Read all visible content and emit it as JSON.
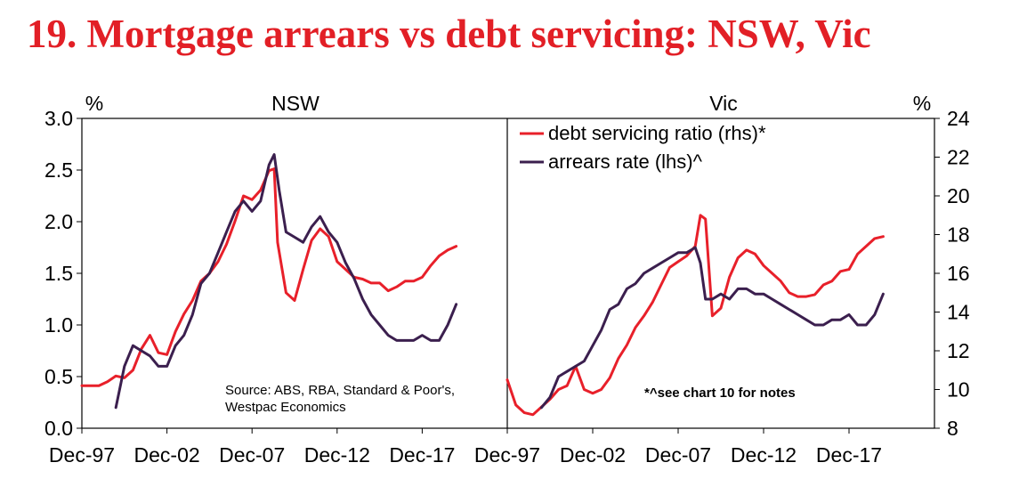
{
  "title": "19. Mortgage arrears vs debt servicing:  NSW, Vic",
  "colors": {
    "title": "#e21f26",
    "debt_servicing": "#e8202a",
    "arrears": "#3b1f4e",
    "axes": "#000000"
  },
  "chart_data": {
    "type": "line",
    "axes": {
      "left": {
        "unit_label": "%",
        "ylim": [
          0,
          3.0
        ],
        "ticks": [
          "0.0",
          "0.5",
          "1.0",
          "1.5",
          "2.0",
          "2.5",
          "3.0"
        ]
      },
      "right": {
        "unit_label": "%",
        "ylim": [
          8,
          24
        ],
        "ticks": [
          "8",
          "10",
          "12",
          "14",
          "16",
          "18",
          "20",
          "22",
          "24"
        ]
      },
      "x_ticks": [
        "Dec-97",
        "Dec-02",
        "Dec-07",
        "Dec-12",
        "Dec-17",
        "Dec-97",
        "Dec-02",
        "Dec-07",
        "Dec-12",
        "Dec-17"
      ]
    },
    "legend": {
      "placement": "top-right",
      "entries": [
        {
          "label": "debt servicing ratio (rhs)*",
          "series": "debt_servicing"
        },
        {
          "label": "arrears rate (lhs)^",
          "series": "arrears"
        }
      ]
    },
    "panels": [
      {
        "name": "NSW",
        "source": [
          "Source: ABS, RBA, Standard & Poor's,",
          "Westpac Economics"
        ],
        "series": [
          {
            "key": "debt_servicing",
            "axis": "right",
            "x": [
              1997.0,
              1998.0,
              1998.5,
              1999.0,
              1999.5,
              2000.0,
              2000.5,
              2001.0,
              2001.5,
              2002.0,
              2002.5,
              2003.0,
              2003.5,
              2004.0,
              2004.5,
              2005.0,
              2005.5,
              2006.0,
              2006.5,
              2007.0,
              2007.5,
              2008.0,
              2008.3,
              2008.5,
              2009.0,
              2009.5,
              2010.0,
              2010.5,
              2011.0,
              2011.5,
              2012.0,
              2012.5,
              2013.0,
              2013.5,
              2014.0,
              2014.5,
              2015.0,
              2015.5,
              2016.0,
              2016.5,
              2017.0,
              2017.5,
              2018.0,
              2018.5,
              2019.0
            ],
            "values": [
              10.2,
              10.2,
              10.4,
              10.7,
              10.6,
              11.0,
              12.1,
              12.8,
              11.9,
              11.8,
              13.0,
              13.9,
              14.6,
              15.6,
              16.0,
              16.6,
              17.5,
              18.7,
              20.0,
              19.8,
              20.3,
              21.3,
              21.4,
              17.6,
              15.0,
              14.6,
              16.2,
              17.7,
              18.3,
              17.9,
              16.6,
              16.2,
              15.8,
              15.7,
              15.5,
              15.5,
              15.1,
              15.3,
              15.6,
              15.6,
              15.8,
              16.4,
              16.9,
              17.2,
              17.4
            ]
          },
          {
            "key": "arrears",
            "axis": "left",
            "x": [
              1999.0,
              1999.5,
              2000.0,
              2000.5,
              2001.0,
              2001.5,
              2002.0,
              2002.5,
              2003.0,
              2003.5,
              2004.0,
              2004.5,
              2005.0,
              2005.5,
              2006.0,
              2006.5,
              2007.0,
              2007.5,
              2008.0,
              2008.3,
              2008.6,
              2009.0,
              2009.5,
              2010.0,
              2010.5,
              2011.0,
              2011.5,
              2012.0,
              2012.5,
              2013.0,
              2013.5,
              2014.0,
              2014.5,
              2015.0,
              2015.5,
              2016.0,
              2016.5,
              2017.0,
              2017.5,
              2018.0,
              2018.5,
              2019.0
            ],
            "values": [
              0.2,
              0.6,
              0.8,
              0.75,
              0.7,
              0.6,
              0.6,
              0.8,
              0.9,
              1.1,
              1.4,
              1.5,
              1.7,
              1.9,
              2.1,
              2.2,
              2.1,
              2.2,
              2.55,
              2.65,
              2.3,
              1.9,
              1.85,
              1.8,
              1.95,
              2.05,
              1.9,
              1.8,
              1.6,
              1.45,
              1.25,
              1.1,
              1.0,
              0.9,
              0.85,
              0.85,
              0.85,
              0.9,
              0.85,
              0.85,
              1.0,
              1.2
            ]
          }
        ]
      },
      {
        "name": "Vic",
        "note": "*^see chart 10 for notes",
        "series": [
          {
            "key": "debt_servicing",
            "axis": "right",
            "x": [
              1997.0,
              1997.5,
              1998.0,
              1998.5,
              1999.0,
              1999.5,
              2000.0,
              2000.5,
              2001.0,
              2001.5,
              2002.0,
              2002.5,
              2003.0,
              2003.5,
              2004.0,
              2004.5,
              2005.0,
              2005.5,
              2006.0,
              2006.5,
              2007.0,
              2007.5,
              2008.0,
              2008.3,
              2008.6,
              2009.0,
              2009.5,
              2010.0,
              2010.5,
              2011.0,
              2011.5,
              2012.0,
              2012.5,
              2013.0,
              2013.5,
              2014.0,
              2014.5,
              2015.0,
              2015.5,
              2016.0,
              2016.5,
              2017.0,
              2017.5,
              2018.0,
              2018.5,
              2019.0
            ],
            "values": [
              10.5,
              9.2,
              8.8,
              8.7,
              9.1,
              9.5,
              10.0,
              10.2,
              11.2,
              10.0,
              9.8,
              10.0,
              10.6,
              11.6,
              12.3,
              13.2,
              13.8,
              14.5,
              15.4,
              16.3,
              16.6,
              16.9,
              17.4,
              19.0,
              18.8,
              13.8,
              14.2,
              15.8,
              16.8,
              17.2,
              17.0,
              16.4,
              16.0,
              15.6,
              15.0,
              14.8,
              14.8,
              14.9,
              15.4,
              15.6,
              16.1,
              16.2,
              17.0,
              17.4,
              17.8,
              17.9
            ]
          },
          {
            "key": "arrears",
            "axis": "left",
            "x": [
              1999.0,
              1999.5,
              2000.0,
              2000.5,
              2001.0,
              2001.5,
              2002.0,
              2002.5,
              2003.0,
              2003.5,
              2004.0,
              2004.5,
              2005.0,
              2005.5,
              2006.0,
              2006.5,
              2007.0,
              2007.5,
              2008.0,
              2008.3,
              2008.6,
              2009.0,
              2009.5,
              2010.0,
              2010.5,
              2011.0,
              2011.5,
              2012.0,
              2012.5,
              2013.0,
              2013.5,
              2014.0,
              2014.5,
              2015.0,
              2015.5,
              2016.0,
              2016.5,
              2017.0,
              2017.5,
              2018.0,
              2018.5,
              2019.0
            ],
            "values": [
              0.2,
              0.3,
              0.5,
              0.55,
              0.6,
              0.65,
              0.8,
              0.95,
              1.15,
              1.2,
              1.35,
              1.4,
              1.5,
              1.55,
              1.6,
              1.65,
              1.7,
              1.7,
              1.75,
              1.6,
              1.25,
              1.25,
              1.3,
              1.25,
              1.35,
              1.35,
              1.3,
              1.3,
              1.25,
              1.2,
              1.15,
              1.1,
              1.05,
              1.0,
              1.0,
              1.05,
              1.05,
              1.1,
              1.0,
              1.0,
              1.1,
              1.3
            ]
          }
        ]
      }
    ]
  }
}
